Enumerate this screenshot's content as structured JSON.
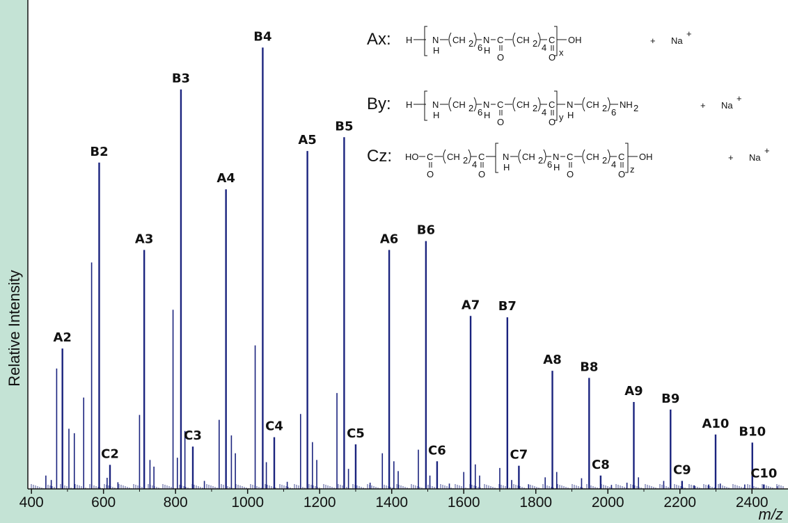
{
  "chart_data": {
    "type": "bar",
    "xlabel": "m/z",
    "ylabel": "Relative Intensity",
    "xlim": [
      390,
      2500
    ],
    "ylim": [
      0,
      100
    ],
    "xticks": [
      "400",
      "600",
      "800",
      "1000",
      "1200",
      "1400",
      "1600",
      "1800",
      "2000",
      "2200",
      "2400"
    ],
    "colors": {
      "background": "#c4e3d5",
      "plot_background": "#ffffff",
      "series": "#1a237e"
    },
    "labeled_peaks": [
      {
        "label": "A2",
        "x": 486,
        "y": 31.5
      },
      {
        "label": "B2",
        "x": 588,
        "y": 73.2
      },
      {
        "label": "C2",
        "x": 618,
        "y": 5.4
      },
      {
        "label": "A3",
        "x": 713,
        "y": 53.6
      },
      {
        "label": "B3",
        "x": 815,
        "y": 89.6
      },
      {
        "label": "C3",
        "x": 848,
        "y": 9.5
      },
      {
        "label": "A4",
        "x": 940,
        "y": 67.2
      },
      {
        "label": "B4",
        "x": 1042,
        "y": 99.0
      },
      {
        "label": "C4",
        "x": 1074,
        "y": 11.6
      },
      {
        "label": "A5",
        "x": 1166,
        "y": 75.8
      },
      {
        "label": "B5",
        "x": 1268,
        "y": 78.9
      },
      {
        "label": "C5",
        "x": 1300,
        "y": 10.0
      },
      {
        "label": "A6",
        "x": 1393,
        "y": 53.6
      },
      {
        "label": "B6",
        "x": 1495,
        "y": 55.6
      },
      {
        "label": "C6",
        "x": 1526,
        "y": 6.2
      },
      {
        "label": "A7",
        "x": 1619,
        "y": 38.8
      },
      {
        "label": "B7",
        "x": 1721,
        "y": 38.5
      },
      {
        "label": "C7",
        "x": 1753,
        "y": 5.2
      },
      {
        "label": "A8",
        "x": 1846,
        "y": 26.5
      },
      {
        "label": "B8",
        "x": 1948,
        "y": 24.9
      },
      {
        "label": "C8",
        "x": 1980,
        "y": 3.0
      },
      {
        "label": "A9",
        "x": 2072,
        "y": 19.5
      },
      {
        "label": "B9",
        "x": 2174,
        "y": 17.8
      },
      {
        "label": "C9",
        "x": 2206,
        "y": 1.8
      },
      {
        "label": "A10",
        "x": 2299,
        "y": 12.2
      },
      {
        "label": "B10",
        "x": 2401,
        "y": 10.4
      },
      {
        "label": "C10",
        "x": 2433,
        "y": 1.0
      }
    ],
    "minor_peaks": [
      {
        "x": 470,
        "y": 27.0
      },
      {
        "x": 504,
        "y": 13.5
      },
      {
        "x": 519,
        "y": 12.5
      },
      {
        "x": 545,
        "y": 20.5
      },
      {
        "x": 567,
        "y": 50.8
      },
      {
        "x": 610,
        "y": 2.5
      },
      {
        "x": 700,
        "y": 16.6
      },
      {
        "x": 729,
        "y": 6.5
      },
      {
        "x": 740,
        "y": 5.0
      },
      {
        "x": 793,
        "y": 40.2
      },
      {
        "x": 805,
        "y": 7.0
      },
      {
        "x": 826,
        "y": 13.0
      },
      {
        "x": 921,
        "y": 15.5
      },
      {
        "x": 955,
        "y": 12.0
      },
      {
        "x": 966,
        "y": 8.0
      },
      {
        "x": 1021,
        "y": 32.2
      },
      {
        "x": 1052,
        "y": 6.0
      },
      {
        "x": 1147,
        "y": 16.8
      },
      {
        "x": 1180,
        "y": 10.5
      },
      {
        "x": 1192,
        "y": 6.5
      },
      {
        "x": 1248,
        "y": 21.5
      },
      {
        "x": 1280,
        "y": 4.5
      },
      {
        "x": 1374,
        "y": 8.0
      },
      {
        "x": 1406,
        "y": 6.2
      },
      {
        "x": 1418,
        "y": 4.0
      },
      {
        "x": 1474,
        "y": 8.8
      },
      {
        "x": 1506,
        "y": 3.0
      },
      {
        "x": 1600,
        "y": 3.8
      },
      {
        "x": 1632,
        "y": 5.5
      },
      {
        "x": 1644,
        "y": 3.0
      },
      {
        "x": 1700,
        "y": 4.7
      },
      {
        "x": 1733,
        "y": 2.0
      },
      {
        "x": 1826,
        "y": 2.6
      },
      {
        "x": 1858,
        "y": 3.8
      },
      {
        "x": 1927,
        "y": 2.4
      },
      {
        "x": 2053,
        "y": 1.4
      },
      {
        "x": 2085,
        "y": 2.6
      },
      {
        "x": 2155,
        "y": 1.8
      },
      {
        "x": 2280,
        "y": 1.0
      },
      {
        "x": 2312,
        "y": 1.2
      },
      {
        "x": 2380,
        "y": 1.0
      },
      {
        "x": 440,
        "y": 3.0
      },
      {
        "x": 455,
        "y": 2.0
      },
      {
        "x": 640,
        "y": 1.5
      },
      {
        "x": 880,
        "y": 1.8
      },
      {
        "x": 1110,
        "y": 1.6
      },
      {
        "x": 1340,
        "y": 1.4
      },
      {
        "x": 1560,
        "y": 1.2
      },
      {
        "x": 1780,
        "y": 1.0
      },
      {
        "x": 2010,
        "y": 0.9
      },
      {
        "x": 2240,
        "y": 0.8
      },
      {
        "x": 2470,
        "y": 0.6
      }
    ]
  },
  "formulas": {
    "ax": {
      "tag": "Ax:",
      "h": "H",
      "n": "N",
      "nh": "H",
      "ch2": "CH",
      "sub2": "2",
      "sub6": "6",
      "sub4": "4",
      "c": "C",
      "o": "O",
      "oh": "OH",
      "repeat": "x",
      "plus": "+",
      "na": "Na",
      "charge": "+"
    },
    "by": {
      "tag": "By:",
      "h": "H",
      "n": "N",
      "nh": "H",
      "ch2": "CH",
      "sub2": "2",
      "sub6": "6",
      "sub4": "4",
      "c": "C",
      "o": "O",
      "nh2": "NH",
      "repeat": "y",
      "plus": "+",
      "na": "Na",
      "charge": "+"
    },
    "cz": {
      "tag": "Cz:",
      "ho": "HO",
      "n": "N",
      "nh": "H",
      "ch2": "CH",
      "sub2": "2",
      "sub6": "6",
      "sub4": "4",
      "c": "C",
      "o": "O",
      "oh": "OH",
      "repeat": "z",
      "plus": "+",
      "na": "Na",
      "charge": "+"
    }
  }
}
